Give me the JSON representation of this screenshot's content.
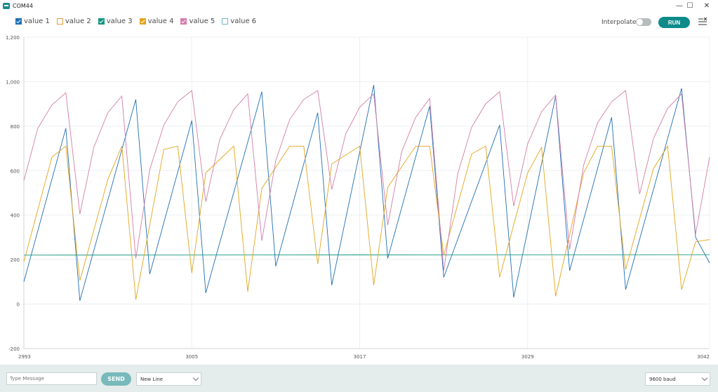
{
  "window": {
    "title": "COM44",
    "minimize": "—",
    "maximize": "☐",
    "close": "✕"
  },
  "legend": [
    {
      "label": "value 1",
      "color": "#1f6fb5",
      "checked": true
    },
    {
      "label": "value 2",
      "color": "#e59b3c",
      "checked": false
    },
    {
      "label": "value 3",
      "color": "#14967f",
      "checked": true
    },
    {
      "label": "value 4",
      "color": "#e3a51b",
      "checked": true
    },
    {
      "label": "value 5",
      "color": "#d47da8",
      "checked": true
    },
    {
      "label": "value 6",
      "color": "#6fb6c9",
      "checked": false
    }
  ],
  "controls": {
    "interpolate_label": "Interpolate",
    "interpolate_on": false,
    "run_label": "RUN",
    "menu_icon": "clear-output-icon"
  },
  "footer": {
    "message_placeholder": "Type Message",
    "send_label": "SEND",
    "line_ending": "New Line",
    "baud": "9600 baud"
  },
  "chart_data": {
    "type": "line",
    "x_ticks": [
      "2993",
      "3005",
      "3017",
      "3029",
      "3042"
    ],
    "y_ticks": [
      "-200",
      "0",
      "200",
      "400",
      "600",
      "800",
      "1,000",
      "1,200"
    ],
    "ylim": [
      -200,
      1200
    ],
    "xlim": [
      2993,
      3042
    ],
    "grid": true,
    "series": [
      {
        "name": "value 1",
        "color": "#1f6fb5",
        "x": [
          2993,
          2996,
          2997,
          3001,
          3002,
          3005,
          3006,
          3010,
          3011,
          3014,
          3015,
          3018,
          3019,
          3022,
          3023,
          3027,
          3028,
          3031,
          3032,
          3035,
          3036,
          3040,
          3041,
          3042
        ],
        "y": [
          100,
          790,
          15,
          920,
          135,
          825,
          50,
          955,
          170,
          860,
          85,
          985,
          205,
          890,
          120,
          805,
          30,
          935,
          150,
          840,
          65,
          970,
          300,
          185
        ]
      },
      {
        "name": "value 3",
        "color": "#14967f",
        "x": [
          2993,
          3042
        ],
        "y": [
          220,
          222
        ]
      },
      {
        "name": "value 4",
        "color": "#e3a51b",
        "x": [
          2993,
          2995,
          2996,
          2997,
          2999,
          3000,
          3001,
          3003,
          3004,
          3005,
          3006,
          3008,
          3009,
          3010,
          3012,
          3013,
          3014,
          3015,
          3017,
          3018,
          3019,
          3021,
          3022,
          3023,
          3025,
          3026,
          3027,
          3029,
          3030,
          3031,
          3033,
          3034,
          3035,
          3036,
          3038,
          3039,
          3040,
          3041,
          3042
        ],
        "y": [
          190,
          660,
          710,
          105,
          560,
          710,
          20,
          695,
          710,
          140,
          590,
          710,
          55,
          520,
          710,
          710,
          180,
          630,
          710,
          85,
          525,
          710,
          710,
          220,
          675,
          710,
          120,
          590,
          705,
          35,
          590,
          710,
          710,
          155,
          610,
          710,
          65,
          280,
          290
        ]
      },
      {
        "name": "value 5",
        "color": "#d47da8",
        "x": [
          2993,
          2994,
          2995,
          2996,
          2997,
          2998,
          2999,
          3000,
          3001,
          3002,
          3003,
          3004,
          3005,
          3006,
          3007,
          3008,
          3009,
          3010,
          3011,
          3012,
          3013,
          3014,
          3015,
          3016,
          3017,
          3018,
          3019,
          3020,
          3021,
          3022,
          3023,
          3024,
          3025,
          3026,
          3027,
          3028,
          3029,
          3030,
          3031,
          3032,
          3033,
          3034,
          3035,
          3036,
          3037,
          3038,
          3039,
          3040,
          3041,
          3042
        ],
        "y": [
          555,
          790,
          895,
          950,
          405,
          705,
          860,
          935,
          205,
          605,
          805,
          910,
          960,
          460,
          740,
          875,
          945,
          285,
          645,
          830,
          920,
          960,
          515,
          765,
          885,
          945,
          355,
          685,
          840,
          925,
          150,
          585,
          795,
          900,
          955,
          440,
          720,
          865,
          940,
          245,
          625,
          815,
          910,
          960,
          495,
          745,
          880,
          945,
          315,
          660
        ]
      }
    ]
  }
}
